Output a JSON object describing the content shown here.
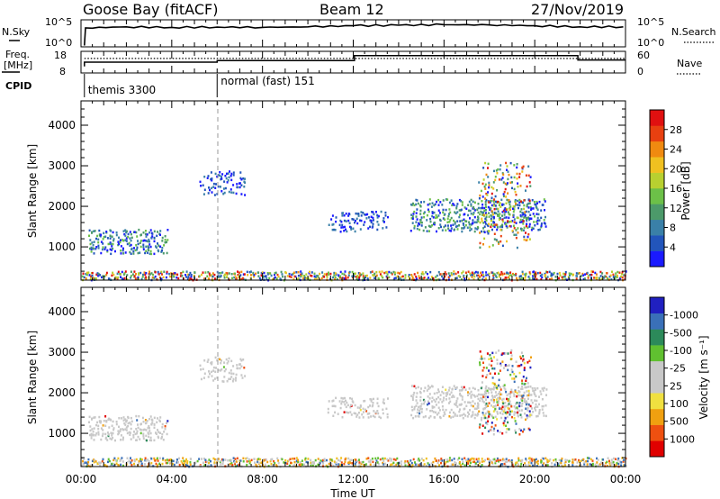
{
  "header": {
    "station": "Goose Bay (fitACF)",
    "beam": "Beam 12",
    "date": "27/Nov/2019"
  },
  "colors": {
    "power_scale": [
      "#1a1aff",
      "#2255bb",
      "#3a80a8",
      "#4c9a6a",
      "#6cc048",
      "#b8d030",
      "#f0c020",
      "#f08a10",
      "#e84010",
      "#e01010"
    ],
    "velocity_scale": [
      "#e00000",
      "#ee5010",
      "#f0a010",
      "#f0e040",
      "#c8c8c8",
      "#c8c8c8",
      "#60c030",
      "#2c8a5a",
      "#3a70b8",
      "#2020c0"
    ],
    "ground_scatter": "#c8c8c8"
  },
  "chart_data": [
    {
      "type": "line",
      "panel": "nsky-nsearch",
      "labels": {
        "left": "N.Sky",
        "right": "N.Search"
      },
      "left_ticks": [
        "10^5",
        "10^0"
      ],
      "right_ticks": [
        "10^5",
        "10^0"
      ],
      "x_range": [
        0,
        24
      ],
      "series": [
        {
          "name": "N.Sky",
          "style": "solid",
          "x": [
            0.15,
            0.2,
            2,
            4,
            6,
            8,
            10,
            12,
            14,
            16,
            18,
            20,
            22,
            23.9
          ],
          "y": [
            0.05,
            0.7,
            0.74,
            0.72,
            0.73,
            0.72,
            0.74,
            0.78,
            0.8,
            0.82,
            0.81,
            0.78,
            0.74,
            0.74
          ]
        }
      ]
    },
    {
      "type": "line",
      "panel": "freq-nave",
      "labels": {
        "left_top": "Freq.",
        "left_bottom": "[MHz]",
        "right": "Nave",
        "cpid": "CPID"
      },
      "left_ticks": [
        "18",
        "8"
      ],
      "right_ticks": [
        "60",
        "0"
      ],
      "x_range": [
        0,
        24
      ],
      "series": [
        {
          "name": "Freq",
          "style": "solid",
          "x": [
            0.15,
            0.15,
            6,
            6,
            12.05,
            12.05,
            21.9,
            21.9,
            24
          ],
          "y": [
            0.3,
            0.5,
            0.5,
            0.57,
            0.57,
            0.8,
            0.8,
            0.6,
            0.6
          ]
        },
        {
          "name": "Nave",
          "style": "dotted",
          "x": [
            0.15,
            24
          ],
          "y": [
            0.67,
            0.67
          ]
        }
      ],
      "cpid_segments": [
        {
          "start": 0.15,
          "label": "themis 3300"
        },
        {
          "start": 6.0,
          "label": "normal (fast) 151"
        }
      ]
    },
    {
      "type": "heatmap",
      "panel": "power",
      "ylabel": "Slant Range [km]",
      "y_ticks": [
        1000,
        2000,
        3000,
        4000
      ],
      "y_range": [
        180,
        4600
      ],
      "x_range": [
        0,
        24
      ],
      "colorbar": {
        "label": "Power [dB]",
        "ticks": [
          "4",
          "8",
          "12",
          "16",
          "20",
          "24",
          "28"
        ]
      },
      "scatter_regions": [
        {
          "x0": 0.3,
          "x1": 3.8,
          "y0": 850,
          "y1": 1450,
          "density": 0.55,
          "level": "medium"
        },
        {
          "x0": 5.2,
          "x1": 7.2,
          "y0": 2300,
          "y1": 2900,
          "density": 0.4,
          "level": "low"
        },
        {
          "x0": 10.8,
          "x1": 13.5,
          "y0": 1400,
          "y1": 1900,
          "density": 0.35,
          "level": "low"
        },
        {
          "x0": 14.5,
          "x1": 20.5,
          "y0": 1400,
          "y1": 2200,
          "density": 0.5,
          "level": "medium"
        },
        {
          "x0": 17.5,
          "x1": 19.8,
          "y0": 1000,
          "y1": 3100,
          "density": 0.25,
          "level": "mixed"
        },
        {
          "x0": 0,
          "x1": 24,
          "y0": 180,
          "y1": 420,
          "density": 0.7,
          "level": "mixed"
        }
      ]
    },
    {
      "type": "heatmap",
      "panel": "velocity",
      "ylabel": "Slant Range [km]",
      "xlabel": "Time UT",
      "y_ticks": [
        1000,
        2000,
        3000,
        4000
      ],
      "y_range": [
        180,
        4600
      ],
      "x_range": [
        0,
        24
      ],
      "x_ticks": [
        "00:00",
        "04:00",
        "08:00",
        "12:00",
        "16:00",
        "20:00",
        "00:00"
      ],
      "colorbar": {
        "label": "Velocity [m s⁻¹]",
        "ticks": [
          "-1000",
          "-500",
          "-100",
          "-25",
          "25",
          "100",
          "500",
          "1000"
        ]
      },
      "scatter_regions": [
        {
          "x0": 0.3,
          "x1": 3.8,
          "y0": 850,
          "y1": 1450,
          "density": 0.55,
          "level": "ground"
        },
        {
          "x0": 5.2,
          "x1": 7.2,
          "y0": 2300,
          "y1": 2900,
          "density": 0.4,
          "level": "ground"
        },
        {
          "x0": 10.8,
          "x1": 13.5,
          "y0": 1400,
          "y1": 1900,
          "density": 0.35,
          "level": "ground"
        },
        {
          "x0": 14.5,
          "x1": 20.5,
          "y0": 1400,
          "y1": 2200,
          "density": 0.5,
          "level": "ground"
        },
        {
          "x0": 17.5,
          "x1": 19.8,
          "y0": 1000,
          "y1": 3100,
          "density": 0.25,
          "level": "mixed"
        },
        {
          "x0": 0,
          "x1": 24,
          "y0": 180,
          "y1": 420,
          "density": 0.7,
          "level": "warm"
        }
      ]
    }
  ]
}
